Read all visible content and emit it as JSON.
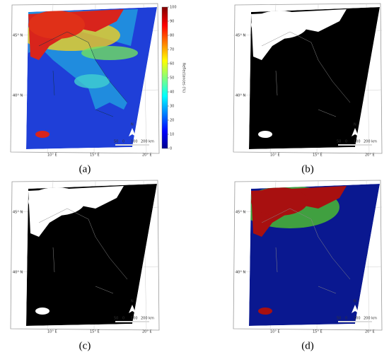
{
  "panels": [
    {
      "label": "(a)",
      "background": "#1f3fd8",
      "foreground": "#d8241c",
      "accent": "#f0d020"
    },
    {
      "label": "(b)",
      "background": "#000000",
      "foreground": "#ffffff",
      "accent": "#ffffff"
    },
    {
      "label": "(c)",
      "background": "#000000",
      "foreground": "#ffffff",
      "accent": "#ffffff"
    },
    {
      "label": "(d)",
      "background": "#0a1890",
      "foreground": "#a81010",
      "accent": "#40a040"
    }
  ],
  "map": {
    "lat_labels": [
      "45° N",
      "40° N"
    ],
    "lon_labels": [
      "10° E",
      "15° E",
      "20° E"
    ],
    "scale_labels": [
      "50",
      "0",
      "100",
      "200 km"
    ],
    "north": "N"
  },
  "colorbar": {
    "label": "Reflectances (%)",
    "lim": [
      0,
      100
    ],
    "ticks": [
      0,
      10,
      20,
      30,
      40,
      50,
      60,
      70,
      80,
      90,
      100
    ]
  }
}
